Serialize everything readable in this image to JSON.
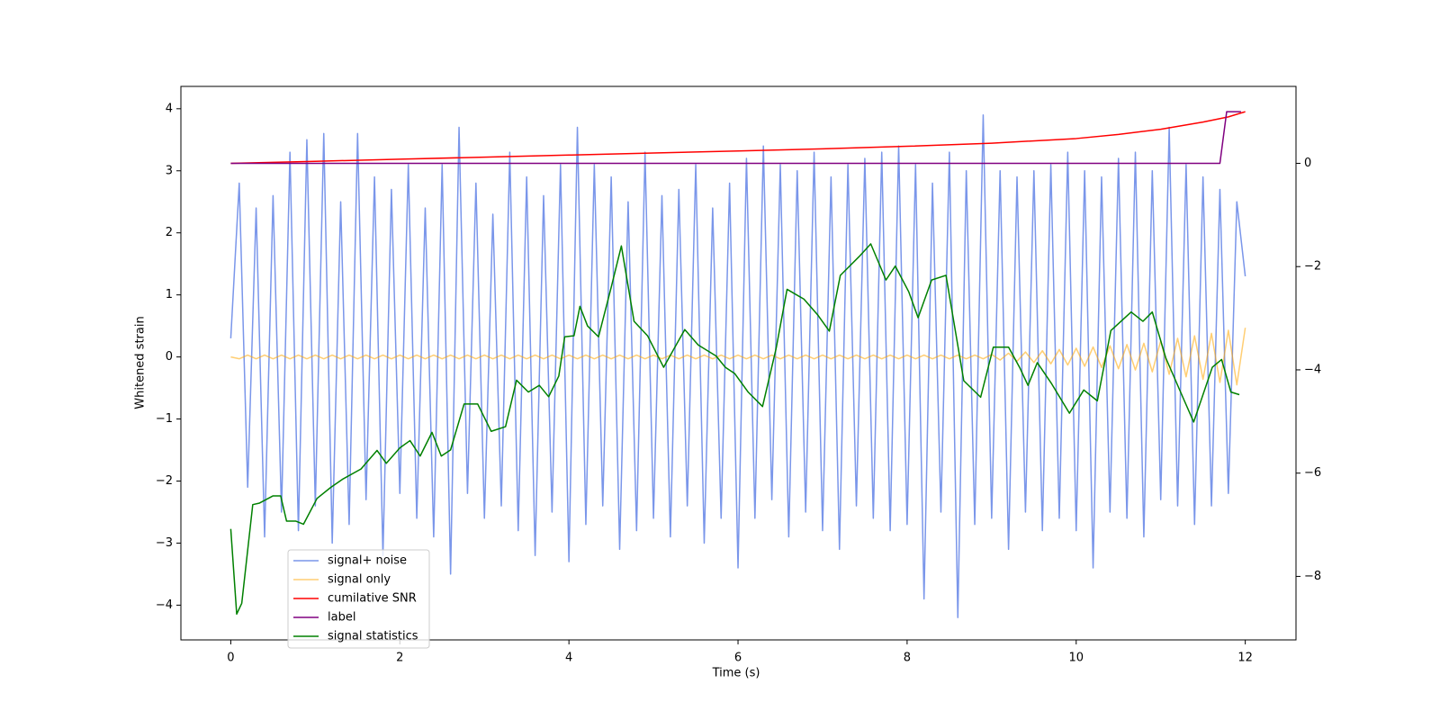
{
  "chart_data": {
    "type": "line",
    "xlabel": "Time (s)",
    "ylabel": "Whitened strain",
    "xlim": [
      -0.59,
      12.6
    ],
    "ylim": [
      -4.56,
      4.36
    ],
    "y2lim": [
      -9.23,
      1.49
    ],
    "xticks": [
      0,
      2,
      4,
      6,
      8,
      10,
      12
    ],
    "yticks": [
      {
        "value": -4,
        "label": "−4"
      },
      {
        "value": -3,
        "label": "−3"
      },
      {
        "value": -2,
        "label": "−2"
      },
      {
        "value": -1,
        "label": "−1"
      },
      0,
      1,
      2,
      3,
      4
    ],
    "y2ticks": [
      {
        "value": -8,
        "label": "−8"
      },
      {
        "value": -6,
        "label": "−6"
      },
      {
        "value": -4,
        "label": "−4"
      },
      {
        "value": -2,
        "label": "−2"
      },
      0
    ],
    "legend": "lower left",
    "x": [
      0,
      0.1,
      0.2,
      0.3,
      0.4,
      0.5,
      0.6,
      0.7,
      0.8,
      0.9,
      1,
      1.1,
      1.2,
      1.3,
      1.4,
      1.5,
      1.6,
      1.7,
      1.8,
      1.9,
      2,
      2.1,
      2.2,
      2.3,
      2.4,
      2.5,
      2.6,
      2.7,
      2.8,
      2.9,
      3,
      3.1,
      3.2,
      3.3,
      3.4,
      3.5,
      3.6,
      3.7,
      3.8,
      3.9,
      4,
      4.1,
      4.2,
      4.3,
      4.4,
      4.5,
      4.6,
      4.7,
      4.8,
      4.9,
      5,
      5.1,
      5.2,
      5.3,
      5.4,
      5.5,
      5.6,
      5.7,
      5.8,
      5.9,
      6,
      6.1,
      6.2,
      6.3,
      6.4,
      6.5,
      6.6,
      6.7,
      6.8,
      6.9,
      7,
      7.1,
      7.2,
      7.3,
      7.4,
      7.5,
      7.6,
      7.7,
      7.8,
      7.9,
      8,
      8.1,
      8.2,
      8.3,
      8.4,
      8.5,
      8.6,
      8.7,
      8.8,
      8.9,
      9,
      9.1,
      9.2,
      9.3,
      9.4,
      9.5,
      9.6,
      9.7,
      9.8,
      9.9,
      10,
      10.1,
      10.2,
      10.3,
      10.4,
      10.5,
      10.6,
      10.7,
      10.8,
      10.9,
      11,
      11.1,
      11.2,
      11.3,
      11.4,
      11.5,
      11.6,
      11.7,
      11.8,
      11.9,
      12
    ],
    "series": [
      {
        "name": "signal+ noise",
        "color": "#4169e1",
        "opacity": 0.7,
        "axis": "y",
        "values": [
          0.3,
          2.8,
          -2.1,
          2.4,
          -2.9,
          2.6,
          -2.5,
          3.3,
          -2.8,
          3.5,
          -2.4,
          3.6,
          -3.0,
          2.5,
          -2.7,
          3.6,
          -2.3,
          2.9,
          -3.2,
          2.7,
          -2.2,
          3.1,
          -2.6,
          2.4,
          -2.9,
          3.1,
          -3.5,
          3.7,
          -2.2,
          2.8,
          -2.6,
          2.3,
          -2.4,
          3.3,
          -2.8,
          2.9,
          -3.2,
          2.6,
          -2.5,
          3.1,
          -3.3,
          3.7,
          -2.7,
          3.1,
          -2.4,
          2.9,
          -3.1,
          2.5,
          -2.8,
          3.3,
          -2.6,
          2.6,
          -2.9,
          2.7,
          -2.4,
          3.1,
          -3.0,
          2.4,
          -2.6,
          2.8,
          -3.4,
          3.2,
          -2.6,
          3.4,
          -2.3,
          3.1,
          -2.9,
          3.0,
          -2.5,
          3.3,
          -2.8,
          2.9,
          -3.1,
          3.1,
          -2.4,
          3.2,
          -2.6,
          3.3,
          -2.8,
          3.4,
          -2.7,
          3.1,
          -3.9,
          2.8,
          -2.5,
          3.3,
          -4.2,
          3.0,
          -2.7,
          3.9,
          -2.6,
          3.0,
          -3.1,
          2.9,
          -2.5,
          3.0,
          -2.8,
          3.1,
          -2.6,
          3.3,
          -2.8,
          3.0,
          -3.4,
          2.9,
          -2.5,
          3.2,
          -2.6,
          3.3,
          -2.9,
          3.0,
          -2.3,
          3.7,
          -2.4,
          3.1,
          -2.7,
          2.9,
          -2.4,
          2.7,
          -2.2,
          2.5,
          1.3
        ]
      },
      {
        "name": "signal only",
        "color": "#ffa500",
        "opacity": 0.55,
        "axis": "y",
        "values": [
          0.0,
          -0.03,
          0.03,
          -0.03,
          0.03,
          -0.03,
          0.03,
          -0.03,
          0.03,
          -0.03,
          0.03,
          -0.03,
          0.03,
          -0.03,
          0.03,
          -0.03,
          0.03,
          -0.03,
          0.03,
          -0.03,
          0.03,
          -0.03,
          0.03,
          -0.03,
          0.03,
          -0.03,
          0.03,
          -0.03,
          0.03,
          -0.03,
          0.03,
          -0.03,
          0.03,
          -0.03,
          0.03,
          -0.03,
          0.03,
          -0.03,
          0.03,
          -0.03,
          0.03,
          -0.03,
          0.03,
          -0.03,
          0.03,
          -0.03,
          0.03,
          -0.03,
          0.03,
          -0.03,
          0.03,
          -0.03,
          0.03,
          -0.03,
          0.03,
          -0.03,
          0.03,
          -0.03,
          0.03,
          -0.03,
          0.03,
          -0.03,
          0.03,
          -0.03,
          0.03,
          -0.03,
          0.03,
          -0.03,
          0.03,
          -0.03,
          0.03,
          -0.03,
          0.03,
          -0.03,
          0.03,
          -0.03,
          0.03,
          -0.03,
          0.03,
          -0.03,
          0.03,
          -0.03,
          0.03,
          -0.03,
          0.03,
          -0.03,
          0.03,
          -0.03,
          0.03,
          -0.03,
          0.04,
          -0.05,
          0.06,
          -0.07,
          0.08,
          -0.09,
          0.1,
          -0.11,
          0.12,
          -0.13,
          0.14,
          -0.15,
          0.16,
          -0.17,
          0.18,
          -0.19,
          0.2,
          -0.21,
          0.22,
          -0.24,
          0.26,
          -0.28,
          0.3,
          -0.32,
          0.34,
          -0.36,
          0.38,
          -0.41,
          0.43,
          -0.45,
          0.47
        ]
      },
      {
        "name": "cumilative SNR",
        "color": "#ff0000",
        "opacity": 1,
        "axis": "y2",
        "x": [
          0,
          1,
          2,
          3,
          4,
          5,
          6,
          7,
          8,
          9,
          10,
          10.5,
          11,
          11.5,
          11.8,
          12
        ],
        "values": [
          0.0,
          0.04,
          0.08,
          0.12,
          0.16,
          0.2,
          0.24,
          0.28,
          0.33,
          0.39,
          0.48,
          0.56,
          0.66,
          0.8,
          0.9,
          1.0
        ]
      },
      {
        "name": "label",
        "color": "#800080",
        "opacity": 1,
        "axis": "y2",
        "x": [
          0,
          11.7,
          11.78,
          11.95
        ],
        "values": [
          0,
          0,
          1.0,
          1.0
        ]
      },
      {
        "name": "signal statistics",
        "color": "#008000",
        "opacity": 1,
        "axis": "y2",
        "x": [
          0,
          0.07,
          0.13,
          0.26,
          0.34,
          0.5,
          0.59,
          0.66,
          0.77,
          0.86,
          1.02,
          1.18,
          1.32,
          1.54,
          1.73,
          1.84,
          2.0,
          2.12,
          2.24,
          2.38,
          2.49,
          2.6,
          2.76,
          2.92,
          3.08,
          3.25,
          3.38,
          3.52,
          3.65,
          3.76,
          3.88,
          3.95,
          4.06,
          4.13,
          4.22,
          4.35,
          4.5,
          4.62,
          4.77,
          4.93,
          5.12,
          5.37,
          5.53,
          5.74,
          5.85,
          5.96,
          6.12,
          6.29,
          6.45,
          6.58,
          6.78,
          6.94,
          7.08,
          7.21,
          7.43,
          7.57,
          7.75,
          7.86,
          8.02,
          8.13,
          8.29,
          8.46,
          8.67,
          8.87,
          9.02,
          9.2,
          9.33,
          9.43,
          9.54,
          9.71,
          9.92,
          10.09,
          10.25,
          10.41,
          10.65,
          10.79,
          10.9,
          11.06,
          11.28,
          11.39,
          11.61,
          11.72,
          11.83,
          11.93
        ],
        "values": [
          -7.08,
          -8.73,
          -8.52,
          -6.61,
          -6.58,
          -6.44,
          -6.44,
          -6.93,
          -6.93,
          -6.99,
          -6.49,
          -6.28,
          -6.12,
          -5.92,
          -5.56,
          -5.81,
          -5.51,
          -5.37,
          -5.67,
          -5.21,
          -5.67,
          -5.55,
          -4.66,
          -4.66,
          -5.19,
          -5.1,
          -4.2,
          -4.43,
          -4.3,
          -4.52,
          -4.12,
          -3.36,
          -3.34,
          -2.77,
          -3.15,
          -3.36,
          -2.4,
          -1.6,
          -3.06,
          -3.34,
          -3.95,
          -3.22,
          -3.52,
          -3.73,
          -3.95,
          -4.07,
          -4.43,
          -4.71,
          -3.59,
          -2.44,
          -2.63,
          -2.93,
          -3.25,
          -2.17,
          -1.81,
          -1.56,
          -2.26,
          -1.99,
          -2.49,
          -2.99,
          -2.26,
          -2.17,
          -4.21,
          -4.53,
          -3.56,
          -3.56,
          -3.95,
          -4.3,
          -3.86,
          -4.27,
          -4.84,
          -4.39,
          -4.6,
          -3.24,
          -2.88,
          -3.06,
          -2.88,
          -3.77,
          -4.6,
          -5.01,
          -3.95,
          -3.8,
          -4.43,
          -4.48
        ]
      }
    ]
  }
}
